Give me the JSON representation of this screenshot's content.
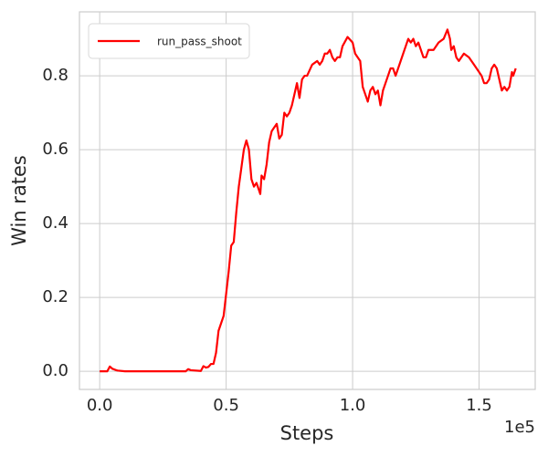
{
  "chart_data": {
    "type": "line",
    "x_label": "Steps",
    "y_label": "Win rates",
    "x_offset_label": "1e5",
    "xlim": [
      -8000,
      172200
    ],
    "ylim": [
      -0.049,
      0.973
    ],
    "xticks": [
      {
        "value": 0,
        "label": "0.0"
      },
      {
        "value": 50000,
        "label": "0.5"
      },
      {
        "value": 100000,
        "label": "1.0"
      },
      {
        "value": 150000,
        "label": "1.5"
      }
    ],
    "yticks": [
      {
        "value": 0,
        "label": "0.0"
      },
      0.2,
      0.4,
      0.6,
      0.8
    ],
    "grid": true,
    "legend": "upper left",
    "x": [
      0,
      3000,
      4000,
      5000,
      7000,
      10000,
      20000,
      34000,
      35000,
      36000,
      40000,
      41000,
      42000,
      43000,
      44000,
      45000,
      46000,
      47000,
      48000,
      49000,
      50000,
      51000,
      52000,
      53000,
      54000,
      55000,
      56000,
      57000,
      58000,
      59000,
      60000,
      61000,
      62000,
      63000,
      63500,
      64000,
      65000,
      66000,
      67000,
      68000,
      69000,
      70000,
      71000,
      72000,
      73000,
      74000,
      75000,
      76000,
      77000,
      78000,
      79000,
      80000,
      81000,
      82000,
      84000,
      86000,
      87000,
      88000,
      89000,
      90000,
      91000,
      92000,
      93000,
      94000,
      95000,
      96000,
      98000,
      100000,
      101000,
      102000,
      103000,
      104000,
      105000,
      106000,
      107000,
      108000,
      109000,
      110000,
      111000,
      112000,
      113000,
      114000,
      115000,
      116000,
      117000,
      118000,
      119000,
      120000,
      121000,
      122000,
      123000,
      124000,
      125000,
      126000,
      127000,
      128000,
      129000,
      130000,
      132000,
      134000,
      136000,
      137500,
      138500,
      139000,
      140000,
      141000,
      142000,
      144000,
      146000,
      148000,
      150000,
      151000,
      152000,
      153000,
      154000,
      155000,
      156000,
      157000,
      158000,
      159000,
      160000,
      161000,
      162000,
      163000,
      163500,
      164500
    ],
    "series": [
      {
        "name": "run_pass_shoot",
        "color": "#ff0000",
        "values": [
          0,
          0,
          0.013,
          0.007,
          0.002,
          0,
          0,
          0,
          0.006,
          0.003,
          0.001,
          0.014,
          0.01,
          0.012,
          0.02,
          0.02,
          0.05,
          0.11,
          0.13,
          0.15,
          0.21,
          0.27,
          0.34,
          0.35,
          0.43,
          0.5,
          0.55,
          0.6,
          0.625,
          0.6,
          0.52,
          0.5,
          0.51,
          0.49,
          0.48,
          0.53,
          0.52,
          0.56,
          0.62,
          0.65,
          0.66,
          0.67,
          0.63,
          0.64,
          0.7,
          0.69,
          0.7,
          0.72,
          0.75,
          0.78,
          0.74,
          0.79,
          0.8,
          0.8,
          0.83,
          0.84,
          0.83,
          0.84,
          0.86,
          0.86,
          0.87,
          0.85,
          0.84,
          0.85,
          0.85,
          0.88,
          0.905,
          0.89,
          0.86,
          0.85,
          0.84,
          0.77,
          0.75,
          0.73,
          0.76,
          0.77,
          0.75,
          0.76,
          0.72,
          0.76,
          0.78,
          0.8,
          0.82,
          0.82,
          0.8,
          0.82,
          0.84,
          0.86,
          0.88,
          0.9,
          0.89,
          0.9,
          0.88,
          0.89,
          0.87,
          0.85,
          0.85,
          0.87,
          0.87,
          0.89,
          0.9,
          0.925,
          0.9,
          0.87,
          0.88,
          0.85,
          0.84,
          0.86,
          0.85,
          0.83,
          0.81,
          0.8,
          0.78,
          0.78,
          0.79,
          0.82,
          0.83,
          0.82,
          0.79,
          0.76,
          0.77,
          0.76,
          0.77,
          0.81,
          0.8,
          0.82
        ]
      }
    ]
  }
}
